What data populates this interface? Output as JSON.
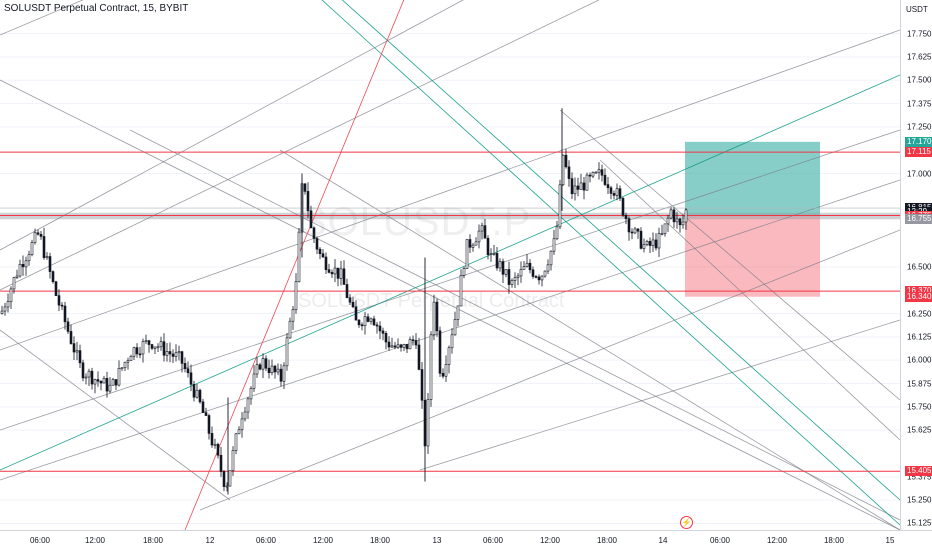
{
  "legend": {
    "symbol": "SOLUSDT Perpetual Contract",
    "interval": "15",
    "exchange": "BYBIT"
  },
  "watermark": {
    "ticker": "SOLUSDT.P",
    "description": "SOLUSDT Perpetual Contract"
  },
  "currency": "USDT",
  "price_axis": {
    "ticks": [
      "17.750",
      "17.625",
      "17.500",
      "17.375",
      "17.250",
      "17.000",
      "16.500",
      "16.250",
      "16.125",
      "16.000",
      "15.875",
      "15.750",
      "15.625",
      "15.375",
      "15.250",
      "15.125"
    ]
  },
  "price_tags": [
    {
      "id": "tp",
      "label": "17.170",
      "price": 17.17,
      "color": "#26a69a"
    },
    {
      "id": "level-high",
      "label": "17.115",
      "price": 17.115,
      "color": "#f23645"
    },
    {
      "id": "last",
      "label": "16.815",
      "price": 16.815,
      "color": "#131722"
    },
    {
      "id": "countdown",
      "label": "12:29",
      "price": 16.795,
      "color": "#131722"
    },
    {
      "id": "entry",
      "label": "16.775",
      "price": 16.775,
      "color": "#f23645"
    },
    {
      "id": "zone",
      "label": "16.755",
      "price": 16.755,
      "color": "#9598a1"
    },
    {
      "id": "level-mid",
      "label": "16.370",
      "price": 16.37,
      "color": "#f23645"
    },
    {
      "id": "sl",
      "label": "16.340",
      "price": 16.34,
      "color": "#f23645"
    },
    {
      "id": "level-low",
      "label": "15.405",
      "price": 15.405,
      "color": "#f23645"
    }
  ],
  "time_axis": {
    "ticks": [
      "06:00",
      "12:00",
      "18:00",
      "12",
      "06:00",
      "12:00",
      "18:00",
      "13",
      "06:00",
      "12:00",
      "18:00",
      "14",
      "06:00",
      "12:00",
      "18:00",
      "15"
    ]
  },
  "colors": {
    "up": "#ffffff",
    "down": "#131722",
    "horizontal_level": "#f23645",
    "channel_gray": "#787b86",
    "channel_teal": "#089981",
    "fib_line": "#f23645",
    "target_zone": "#26a69a",
    "stop_zone": "#f23645"
  },
  "icons": {
    "alert": "lightning-icon"
  },
  "chart_data": {
    "type": "candlestick",
    "symbol": "SOLUSDT Perpetual Contract",
    "interval": "15",
    "exchange": "BYBIT",
    "ylim": [
      15.09,
      17.93
    ],
    "horizontal_levels": [
      17.115,
      16.775,
      16.37,
      15.405
    ],
    "zone": [
      16.755,
      16.79
    ],
    "position": {
      "entry": 16.775,
      "target": 17.17,
      "stop": 16.34
    },
    "last_price": 16.815,
    "path_points": [
      [
        0,
        16.25
      ],
      [
        18,
        16.5
      ],
      [
        38,
        16.68
      ],
      [
        55,
        16.35
      ],
      [
        80,
        15.95
      ],
      [
        100,
        15.88
      ],
      [
        110,
        15.85
      ],
      [
        130,
        16.05
      ],
      [
        150,
        16.1
      ],
      [
        180,
        16.0
      ],
      [
        200,
        15.75
      ],
      [
        215,
        15.5
      ],
      [
        225,
        15.32
      ],
      [
        240,
        15.7
      ],
      [
        260,
        16.0
      ],
      [
        280,
        15.9
      ],
      [
        295,
        16.4
      ],
      [
        302,
        17.0
      ],
      [
        310,
        16.7
      ],
      [
        320,
        16.55
      ],
      [
        340,
        16.45
      ],
      [
        355,
        16.2
      ],
      [
        370,
        16.25
      ],
      [
        385,
        16.1
      ],
      [
        400,
        16.05
      ],
      [
        415,
        16.12
      ],
      [
        425,
        15.5
      ],
      [
        432,
        16.4
      ],
      [
        440,
        15.9
      ],
      [
        455,
        16.25
      ],
      [
        465,
        16.6
      ],
      [
        480,
        16.7
      ],
      [
        490,
        16.55
      ],
      [
        500,
        16.5
      ],
      [
        510,
        16.4
      ],
      [
        525,
        16.5
      ],
      [
        540,
        16.45
      ],
      [
        555,
        16.65
      ],
      [
        562,
        17.1
      ],
      [
        570,
        16.9
      ],
      [
        585,
        16.95
      ],
      [
        600,
        17.0
      ],
      [
        615,
        16.9
      ],
      [
        630,
        16.7
      ],
      [
        645,
        16.6
      ],
      [
        660,
        16.65
      ],
      [
        670,
        16.8
      ],
      [
        680,
        16.7
      ],
      [
        686,
        16.82
      ]
    ]
  }
}
